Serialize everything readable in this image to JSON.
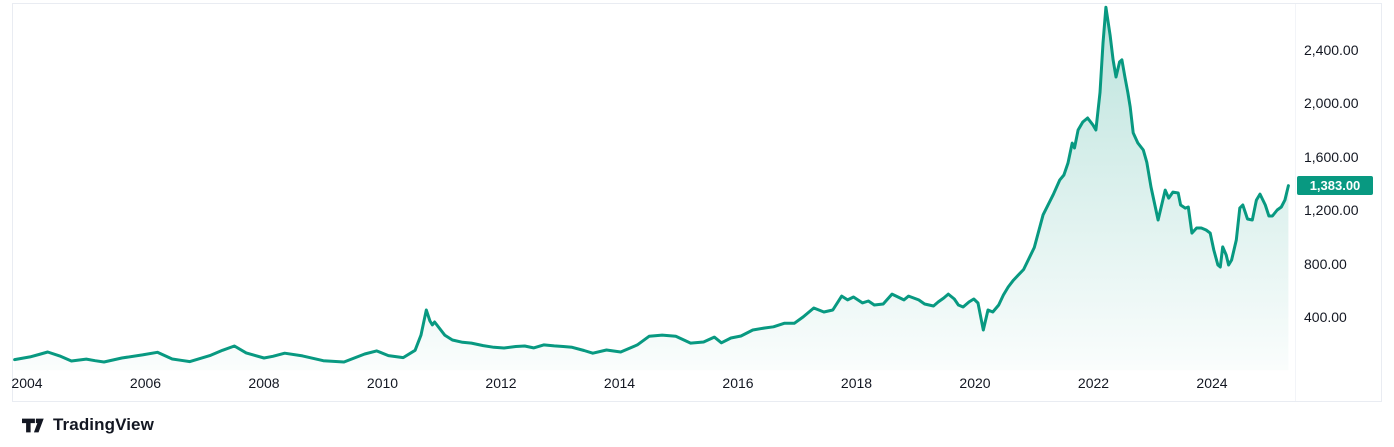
{
  "chart_data": {
    "type": "area",
    "title": "",
    "grid": false,
    "legend": false,
    "line_color": "#089981",
    "badge_color": "#089981",
    "fill_gradient_top": "rgba(8,153,129,0.27)",
    "fill_gradient_bottom": "rgba(8,153,129,0.02)",
    "last_value": 1383,
    "last_value_label": "1,383.00",
    "x_axis": {
      "unit": "year",
      "range": [
        2003.79,
        2025.29
      ],
      "ticks": [
        2004,
        2006,
        2008,
        2010,
        2012,
        2014,
        2016,
        2018,
        2020,
        2022,
        2024
      ],
      "tick_labels": [
        "2004",
        "2006",
        "2008",
        "2010",
        "2012",
        "2014",
        "2016",
        "2018",
        "2020",
        "2022",
        "2024"
      ]
    },
    "y_axis": {
      "range": [
        0,
        2750
      ],
      "ticks": [
        2400,
        2000,
        1600,
        1200,
        800,
        400
      ],
      "tick_labels": [
        "2,400.00",
        "2,000.00",
        "1,600.00",
        "1,200.00",
        "800.00",
        "400.00"
      ]
    },
    "series": [
      {
        "name": "price",
        "points": [
          [
            2003.79,
            80
          ],
          [
            2004.05,
            100
          ],
          [
            2004.2,
            118
          ],
          [
            2004.35,
            137
          ],
          [
            2004.55,
            108
          ],
          [
            2004.75,
            70
          ],
          [
            2005.0,
            84
          ],
          [
            2005.15,
            72
          ],
          [
            2005.3,
            62
          ],
          [
            2005.6,
            92
          ],
          [
            2005.95,
            115
          ],
          [
            2006.2,
            135
          ],
          [
            2006.45,
            85
          ],
          [
            2006.6,
            75
          ],
          [
            2006.75,
            65
          ],
          [
            2007.1,
            112
          ],
          [
            2007.3,
            150
          ],
          [
            2007.5,
            182
          ],
          [
            2007.7,
            130
          ],
          [
            2008.0,
            92
          ],
          [
            2008.15,
            105
          ],
          [
            2008.35,
            128
          ],
          [
            2008.65,
            108
          ],
          [
            2009.0,
            72
          ],
          [
            2009.35,
            62
          ],
          [
            2009.7,
            122
          ],
          [
            2009.9,
            145
          ],
          [
            2010.1,
            110
          ],
          [
            2010.35,
            95
          ],
          [
            2010.55,
            150
          ],
          [
            2010.65,
            264
          ],
          [
            2010.74,
            452
          ],
          [
            2010.8,
            370
          ],
          [
            2010.84,
            340
          ],
          [
            2010.88,
            362
          ],
          [
            2011.05,
            264
          ],
          [
            2011.18,
            227
          ],
          [
            2011.35,
            210
          ],
          [
            2011.5,
            204
          ],
          [
            2011.7,
            185
          ],
          [
            2011.88,
            172
          ],
          [
            2012.05,
            167
          ],
          [
            2012.25,
            178
          ],
          [
            2012.4,
            182
          ],
          [
            2012.55,
            168
          ],
          [
            2012.72,
            190
          ],
          [
            2012.9,
            183
          ],
          [
            2013.05,
            178
          ],
          [
            2013.2,
            172
          ],
          [
            2013.4,
            148
          ],
          [
            2013.55,
            128
          ],
          [
            2013.78,
            152
          ],
          [
            2014.02,
            137
          ],
          [
            2014.3,
            190
          ],
          [
            2014.5,
            255
          ],
          [
            2014.72,
            264
          ],
          [
            2014.95,
            255
          ],
          [
            2015.2,
            204
          ],
          [
            2015.42,
            212
          ],
          [
            2015.6,
            249
          ],
          [
            2015.72,
            206
          ],
          [
            2015.88,
            242
          ],
          [
            2016.05,
            257
          ],
          [
            2016.25,
            302
          ],
          [
            2016.45,
            317
          ],
          [
            2016.6,
            326
          ],
          [
            2016.78,
            352
          ],
          [
            2016.95,
            352
          ],
          [
            2017.1,
            400
          ],
          [
            2017.28,
            467
          ],
          [
            2017.45,
            437
          ],
          [
            2017.6,
            452
          ],
          [
            2017.75,
            556
          ],
          [
            2017.85,
            527
          ],
          [
            2017.95,
            549
          ],
          [
            2018.1,
            505
          ],
          [
            2018.2,
            519
          ],
          [
            2018.3,
            489
          ],
          [
            2018.45,
            497
          ],
          [
            2018.6,
            571
          ],
          [
            2018.7,
            549
          ],
          [
            2018.8,
            527
          ],
          [
            2018.88,
            556
          ],
          [
            2019.05,
            527
          ],
          [
            2019.15,
            497
          ],
          [
            2019.3,
            482
          ],
          [
            2019.38,
            512
          ],
          [
            2019.47,
            541
          ],
          [
            2019.55,
            571
          ],
          [
            2019.65,
            534
          ],
          [
            2019.72,
            489
          ],
          [
            2019.8,
            474
          ],
          [
            2019.9,
            512
          ],
          [
            2019.98,
            534
          ],
          [
            2020.05,
            504
          ],
          [
            2020.14,
            302
          ],
          [
            2020.22,
            452
          ],
          [
            2020.3,
            437
          ],
          [
            2020.4,
            489
          ],
          [
            2020.48,
            564
          ],
          [
            2020.56,
            624
          ],
          [
            2020.65,
            676
          ],
          [
            2020.82,
            755
          ],
          [
            2021.0,
            920
          ],
          [
            2021.15,
            1165
          ],
          [
            2021.32,
            1315
          ],
          [
            2021.43,
            1425
          ],
          [
            2021.5,
            1463
          ],
          [
            2021.57,
            1553
          ],
          [
            2021.64,
            1702
          ],
          [
            2021.68,
            1665
          ],
          [
            2021.74,
            1800
          ],
          [
            2021.82,
            1860
          ],
          [
            2021.9,
            1890
          ],
          [
            2021.99,
            1838
          ],
          [
            2022.04,
            1800
          ],
          [
            2022.11,
            2080
          ],
          [
            2022.16,
            2450
          ],
          [
            2022.21,
            2720
          ],
          [
            2022.28,
            2510
          ],
          [
            2022.33,
            2325
          ],
          [
            2022.38,
            2197
          ],
          [
            2022.44,
            2310
          ],
          [
            2022.48,
            2325
          ],
          [
            2022.53,
            2197
          ],
          [
            2022.58,
            2078
          ],
          [
            2022.62,
            1972
          ],
          [
            2022.67,
            1778
          ],
          [
            2022.75,
            1702
          ],
          [
            2022.84,
            1650
          ],
          [
            2022.9,
            1558
          ],
          [
            2022.97,
            1373
          ],
          [
            2023.09,
            1126
          ],
          [
            2023.21,
            1350
          ],
          [
            2023.27,
            1290
          ],
          [
            2023.34,
            1335
          ],
          [
            2023.43,
            1328
          ],
          [
            2023.47,
            1238
          ],
          [
            2023.55,
            1215
          ],
          [
            2023.6,
            1223
          ],
          [
            2023.66,
            1028
          ],
          [
            2023.74,
            1066
          ],
          [
            2023.82,
            1066
          ],
          [
            2023.9,
            1051
          ],
          [
            2023.97,
            1028
          ],
          [
            2024.03,
            901
          ],
          [
            2024.1,
            789
          ],
          [
            2024.14,
            774
          ],
          [
            2024.18,
            924
          ],
          [
            2024.24,
            864
          ],
          [
            2024.28,
            789
          ],
          [
            2024.33,
            826
          ],
          [
            2024.41,
            976
          ],
          [
            2024.47,
            1215
          ],
          [
            2024.52,
            1238
          ],
          [
            2024.6,
            1133
          ],
          [
            2024.68,
            1126
          ],
          [
            2024.75,
            1275
          ],
          [
            2024.81,
            1320
          ],
          [
            2024.9,
            1238
          ],
          [
            2024.96,
            1156
          ],
          [
            2025.02,
            1156
          ],
          [
            2025.1,
            1201
          ],
          [
            2025.17,
            1223
          ],
          [
            2025.23,
            1275
          ],
          [
            2025.29,
            1383
          ]
        ]
      }
    ]
  },
  "footer": {
    "brand": "TradingView",
    "logo_icon": "tradingview-logo"
  }
}
